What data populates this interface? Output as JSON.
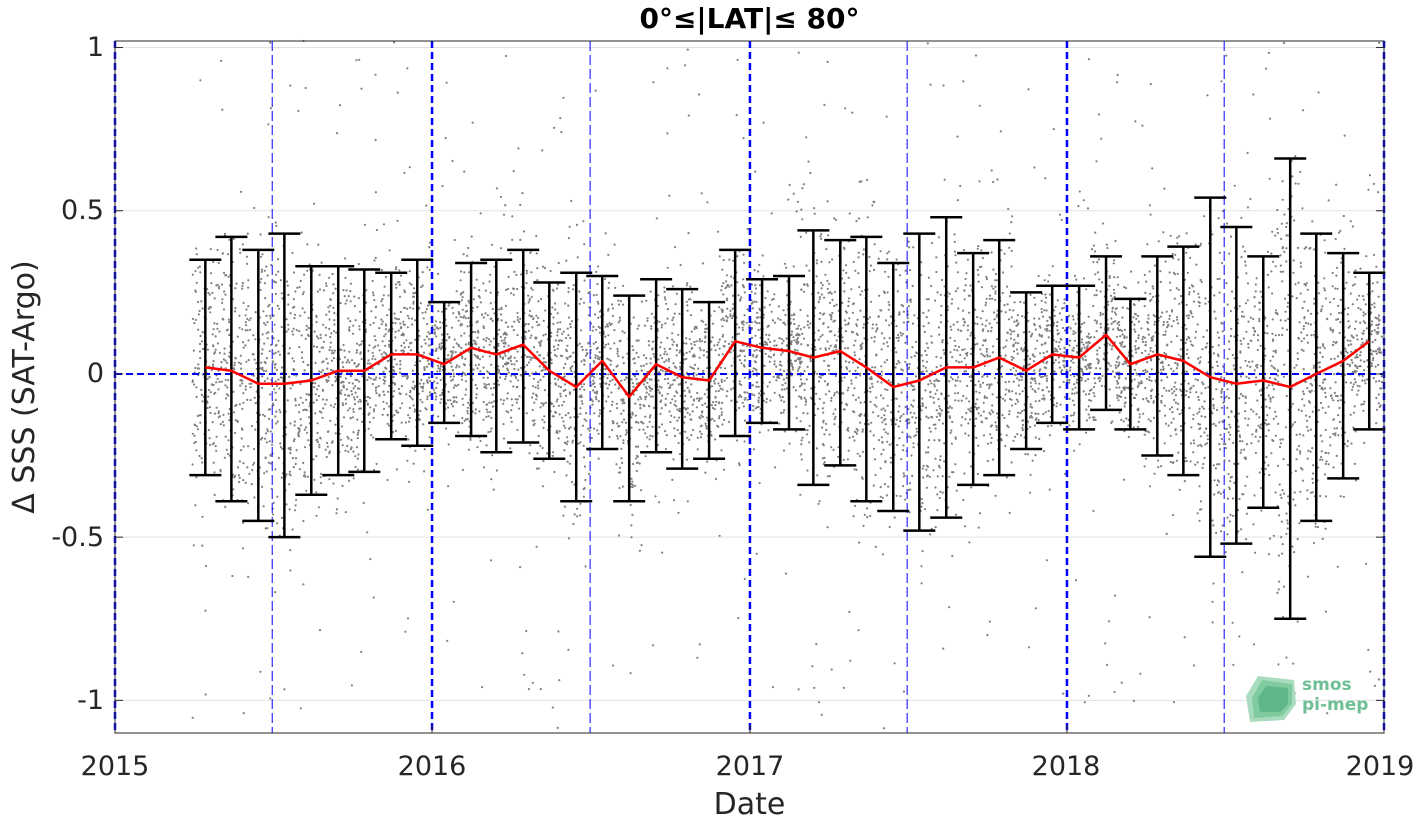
{
  "chart_data": {
    "type": "scatter",
    "title": "0°≤|LAT|≤ 80°",
    "xlabel": "Date",
    "ylabel": "Δ SSS (SAT-Argo)",
    "xlim": [
      "2015-01-01",
      "2019-01-01"
    ],
    "ylim": [
      -1.1,
      1.02
    ],
    "x_ticks": [
      "2015",
      "2016",
      "2017",
      "2018",
      "2019"
    ],
    "y_ticks": [
      1,
      0.5,
      0,
      -0.5,
      -1
    ],
    "y_tick_labels": [
      "1",
      "0.5",
      "0",
      "-0.5",
      "-1"
    ],
    "grid": true,
    "zero_line_color": "#0000ff",
    "year_lines": [
      "2015-01-01",
      "2016-01-01",
      "2017-01-01",
      "2018-01-01",
      "2019-01-01"
    ],
    "half_year_lines": [
      "2015-07-01",
      "2016-07-01",
      "2017-07-01",
      "2018-07-01"
    ],
    "scatter_color": "#808080",
    "scatter_note": "dense cloud of individual SAT-Argo match-up differences, mostly within about -0.5 to 0.5",
    "monthly": {
      "mean_color": "#ff0000",
      "errorbar_color": "#000000",
      "x": [
        "2015-04-15",
        "2015-05-15",
        "2015-06-15",
        "2015-07-15",
        "2015-08-15",
        "2015-09-15",
        "2015-10-15",
        "2015-11-15",
        "2015-12-15",
        "2016-01-15",
        "2016-02-15",
        "2016-03-15",
        "2016-04-15",
        "2016-05-15",
        "2016-06-15",
        "2016-07-15",
        "2016-08-15",
        "2016-09-15",
        "2016-10-15",
        "2016-11-15",
        "2016-12-15",
        "2017-01-15",
        "2017-02-15",
        "2017-03-15",
        "2017-04-15",
        "2017-05-15",
        "2017-06-15",
        "2017-07-15",
        "2017-08-15",
        "2017-09-15",
        "2017-10-15",
        "2017-11-15",
        "2017-12-15",
        "2018-01-15",
        "2018-02-15",
        "2018-03-15",
        "2018-04-15",
        "2018-05-15",
        "2018-06-15",
        "2018-07-15",
        "2018-08-15",
        "2018-09-15",
        "2018-10-15",
        "2018-11-15",
        "2018-12-15"
      ],
      "mean": [
        0.02,
        0.01,
        -0.03,
        -0.03,
        -0.02,
        0.01,
        0.01,
        0.06,
        0.06,
        0.03,
        0.08,
        0.06,
        0.09,
        0.01,
        -0.04,
        0.04,
        -0.07,
        0.03,
        -0.01,
        -0.02,
        0.1,
        0.08,
        0.07,
        0.05,
        0.07,
        0.02,
        -0.04,
        -0.02,
        0.02,
        0.02,
        0.05,
        0.01,
        0.06,
        0.05,
        0.12,
        0.03,
        0.06,
        0.04,
        -0.01,
        -0.03,
        -0.02,
        -0.04,
        0.0,
        0.04,
        0.1
      ],
      "upper": [
        0.35,
        0.42,
        0.38,
        0.43,
        0.33,
        0.33,
        0.32,
        0.31,
        0.35,
        0.22,
        0.34,
        0.35,
        0.38,
        0.28,
        0.31,
        0.3,
        0.24,
        0.29,
        0.26,
        0.22,
        0.38,
        0.29,
        0.3,
        0.44,
        0.41,
        0.42,
        0.34,
        0.43,
        0.48,
        0.37,
        0.41,
        0.25,
        0.27,
        0.27,
        0.36,
        0.23,
        0.36,
        0.39,
        0.54,
        0.45,
        0.36,
        0.66,
        0.43,
        0.37,
        0.31
      ],
      "lower": [
        -0.31,
        -0.39,
        -0.45,
        -0.5,
        -0.37,
        -0.31,
        -0.3,
        -0.2,
        -0.22,
        -0.15,
        -0.19,
        -0.24,
        -0.21,
        -0.26,
        -0.39,
        -0.23,
        -0.39,
        -0.24,
        -0.29,
        -0.26,
        -0.19,
        -0.15,
        -0.17,
        -0.34,
        -0.28,
        -0.39,
        -0.42,
        -0.48,
        -0.44,
        -0.34,
        -0.31,
        -0.23,
        -0.15,
        -0.17,
        -0.11,
        -0.17,
        -0.25,
        -0.31,
        -0.56,
        -0.52,
        -0.41,
        -0.75,
        -0.45,
        -0.32,
        -0.17
      ]
    }
  },
  "logo": {
    "line1": "smos",
    "line2": "pi-mep",
    "color": "#6fbf95"
  }
}
